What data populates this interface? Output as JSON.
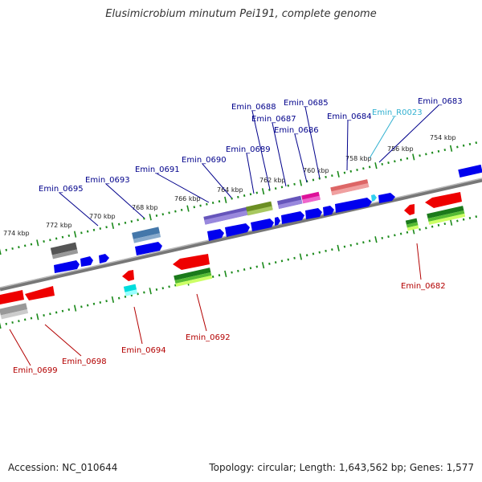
{
  "title": "Elusimicrobium minutum Pei191, complete genome",
  "footer": {
    "accession": "Accession: NC_010644",
    "stats": "Topology: circular; Length: 1,643,562 bp; Genes: 1,577"
  },
  "colors": {
    "backbone": "#888888",
    "tick": "#1b8a1b",
    "forward_label": "#00008b",
    "reverse_label": "#b30000",
    "rna_label": "#30b0d0",
    "cds": "#0000ee"
  },
  "scale_labels": [
    "774 kbp",
    "772 kbp",
    "770 kbp",
    "768 kbp",
    "766 kbp",
    "764 kbp",
    "762 kbp",
    "760 kbp",
    "758 kbp",
    "756 kbp",
    "754 kbp"
  ],
  "forward_labels": [
    "Emin_0695",
    "Emin_0693",
    "Emin_0691",
    "Emin_0690",
    "Emin_0689",
    "Emin_0688",
    "Emin_0687",
    "Emin_0686",
    "Emin_0685",
    "Emin_0684",
    "Emin_R0023",
    "Emin_0683"
  ],
  "reverse_labels": [
    "Emin_0699",
    "Emin_0698",
    "Emin_0694",
    "Emin_0692",
    "Emin_0682"
  ]
}
